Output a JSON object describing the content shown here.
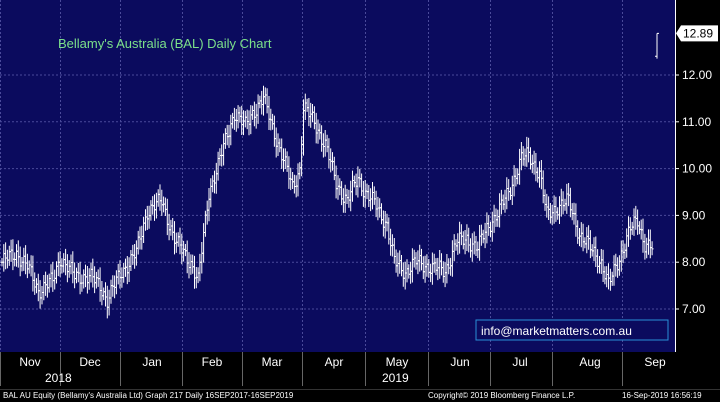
{
  "chart_data": {
    "type": "ohlc",
    "title": "Bellamy's Australia (BAL) Daily Chart",
    "ylim": [
      6.2,
      12.9
    ],
    "y_ticks": [
      "7.00",
      "8.00",
      "9.00",
      "10.00",
      "11.00",
      "12.00"
    ],
    "y_tick_values": [
      7,
      8,
      9,
      10,
      11,
      12
    ],
    "x_ticks": [
      "Nov",
      "Dec",
      "Jan",
      "Feb",
      "Mar",
      "Apr",
      "May",
      "Jun",
      "Jul",
      "Aug",
      "Sep"
    ],
    "year_labels": [
      "2018",
      "2019"
    ],
    "last_price": "12.89",
    "last_price_value": 12.89,
    "grid": true,
    "price_anchors": [
      [
        0,
        8.0
      ],
      [
        8,
        8.2
      ],
      [
        14,
        7.9
      ],
      [
        20,
        7.4
      ],
      [
        28,
        7.6
      ],
      [
        32,
        8.1
      ],
      [
        40,
        7.7
      ],
      [
        48,
        7.7
      ],
      [
        54,
        7.5
      ],
      [
        58,
        7.2
      ],
      [
        66,
        7.8
      ],
      [
        74,
        8.2
      ],
      [
        80,
        9.1
      ],
      [
        88,
        9.3
      ],
      [
        96,
        8.4
      ],
      [
        104,
        8.0
      ],
      [
        108,
        7.6
      ],
      [
        114,
        9.5
      ],
      [
        120,
        10.2
      ],
      [
        128,
        11.2
      ],
      [
        134,
        10.9
      ],
      [
        138,
        11.2
      ],
      [
        144,
        11.5
      ],
      [
        148,
        11.0
      ],
      [
        154,
        10.3
      ],
      [
        160,
        9.6
      ],
      [
        164,
        10.0
      ],
      [
        166,
        11.3
      ],
      [
        172,
        11.0
      ],
      [
        178,
        10.5
      ],
      [
        184,
        9.7
      ],
      [
        190,
        9.3
      ],
      [
        196,
        9.8
      ],
      [
        200,
        9.5
      ],
      [
        206,
        9.2
      ],
      [
        212,
        8.8
      ],
      [
        216,
        8.0
      ],
      [
        222,
        7.8
      ],
      [
        228,
        8.0
      ],
      [
        236,
        7.9
      ],
      [
        244,
        7.8
      ],
      [
        250,
        8.4
      ],
      [
        256,
        8.5
      ],
      [
        262,
        8.3
      ],
      [
        268,
        8.8
      ],
      [
        274,
        9.1
      ],
      [
        280,
        9.6
      ],
      [
        286,
        10.2
      ],
      [
        290,
        10.3
      ],
      [
        296,
        9.9
      ],
      [
        300,
        9.0
      ],
      [
        306,
        9.2
      ],
      [
        312,
        9.3
      ],
      [
        318,
        8.6
      ],
      [
        324,
        8.3
      ],
      [
        330,
        8.0
      ],
      [
        334,
        7.5
      ],
      [
        340,
        8.1
      ],
      [
        346,
        8.7
      ],
      [
        350,
        8.9
      ],
      [
        354,
        8.4
      ],
      [
        358,
        8.3
      ]
    ],
    "jump_close": 12.89
  },
  "footer": {
    "left": "BAL AU Equity (Bellamy's Australia Ltd) Graph 217  Daily 16SEP2017-16SEP2019",
    "copyright": "Copyright© 2019 Bloomberg Finance L.P.",
    "timestamp": "16-Sep-2019 16:56:19"
  },
  "contact": "info@marketmatters.com.au",
  "colors": {
    "background": "#000000",
    "plot_background": "#0b0b5e",
    "grid": "#4a4a9a",
    "bars": "#ffffff",
    "title": "#7be08a",
    "badge_fill": "#ffffff",
    "contact_border": "#2a8fd6"
  }
}
